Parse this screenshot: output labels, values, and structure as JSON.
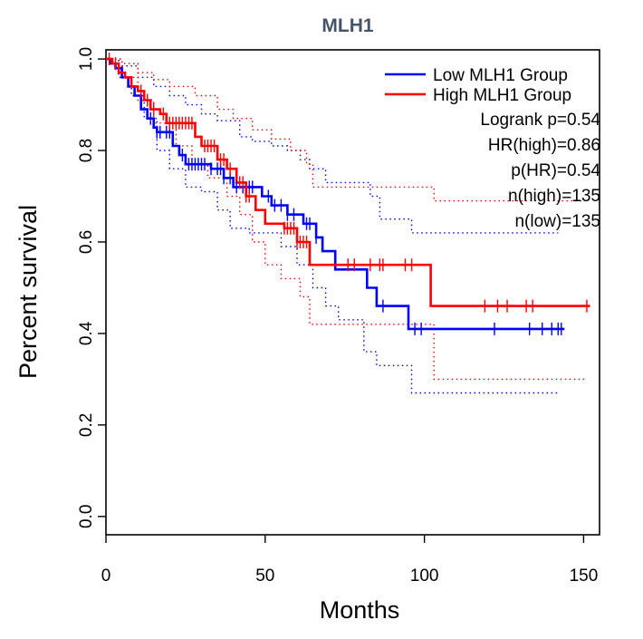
{
  "chart_data": {
    "type": "line",
    "title": "MLH1",
    "xlabel": "Months",
    "ylabel": "Percent survival",
    "xlim": [
      0,
      155
    ],
    "ylim": [
      -0.04,
      1.02
    ],
    "x_ticks": [
      0,
      50,
      100,
      150
    ],
    "x_tick_labels": [
      "0",
      "50",
      "100",
      "150"
    ],
    "y_ticks": [
      0.0,
      0.2,
      0.4,
      0.6,
      0.8,
      1.0
    ],
    "y_tick_labels": [
      "0.0",
      "0.2",
      "0.4",
      "0.6",
      "0.8",
      "1.0"
    ],
    "legend_position": "top-right",
    "annotations": [
      "Logrank p=0.54",
      "HR(high)=0.86",
      "p(HR)=0.54",
      "n(high)=135",
      "n(low)=135"
    ],
    "colors": {
      "low": "#0000FF",
      "high": "#FF0000",
      "title": "#44546A"
    },
    "series": [
      {
        "name": "Low MLH1 Group",
        "color": "#0000FF",
        "steps": [
          [
            0,
            1.0
          ],
          [
            1.5,
            0.99
          ],
          [
            3,
            0.98
          ],
          [
            5,
            0.96
          ],
          [
            7,
            0.94
          ],
          [
            9,
            0.92
          ],
          [
            11,
            0.89
          ],
          [
            13,
            0.87
          ],
          [
            15,
            0.85
          ],
          [
            16,
            0.84
          ],
          [
            21,
            0.81
          ],
          [
            23,
            0.79
          ],
          [
            25,
            0.77
          ],
          [
            33,
            0.76
          ],
          [
            37,
            0.74
          ],
          [
            40,
            0.72
          ],
          [
            49,
            0.7
          ],
          [
            52,
            0.68
          ],
          [
            57,
            0.66
          ],
          [
            62,
            0.64
          ],
          [
            66,
            0.61
          ],
          [
            68,
            0.58
          ],
          [
            72,
            0.54
          ],
          [
            82,
            0.5
          ],
          [
            85,
            0.46
          ],
          [
            95,
            0.41
          ],
          [
            144,
            0.41
          ]
        ],
        "censored": [
          14,
          16,
          17,
          19,
          20,
          24,
          26,
          27,
          28,
          29,
          30,
          31,
          33,
          35,
          36,
          37,
          39,
          41,
          43,
          45,
          46,
          51,
          53,
          55,
          57,
          59,
          63,
          64,
          66,
          87,
          97,
          99,
          122,
          133,
          137,
          140,
          142,
          143
        ],
        "ci_upper": [
          [
            0,
            1.0
          ],
          [
            4,
            0.985
          ],
          [
            10,
            0.96
          ],
          [
            15,
            0.94
          ],
          [
            20,
            0.92
          ],
          [
            25,
            0.9
          ],
          [
            30,
            0.88
          ],
          [
            35,
            0.865
          ],
          [
            42,
            0.83
          ],
          [
            46,
            0.82
          ],
          [
            52,
            0.81
          ],
          [
            57,
            0.8
          ],
          [
            61,
            0.78
          ],
          [
            64,
            0.76
          ],
          [
            69,
            0.73
          ],
          [
            74,
            0.73
          ],
          [
            83,
            0.7
          ],
          [
            86,
            0.65
          ],
          [
            96,
            0.62
          ],
          [
            142,
            0.62
          ]
        ],
        "ci_lower": [
          [
            0,
            1.0
          ],
          [
            4,
            0.96
          ],
          [
            8,
            0.92
          ],
          [
            12,
            0.87
          ],
          [
            16,
            0.8
          ],
          [
            20,
            0.76
          ],
          [
            25,
            0.72
          ],
          [
            30,
            0.71
          ],
          [
            35,
            0.67
          ],
          [
            39,
            0.63
          ],
          [
            45,
            0.62
          ],
          [
            55,
            0.59
          ],
          [
            60,
            0.55
          ],
          [
            65,
            0.5
          ],
          [
            69,
            0.46
          ],
          [
            73,
            0.43
          ],
          [
            81,
            0.36
          ],
          [
            85,
            0.33
          ],
          [
            96,
            0.27
          ],
          [
            142,
            0.27
          ]
        ]
      },
      {
        "name": "High MLH1 Group",
        "color": "#FF0000",
        "steps": [
          [
            0,
            1.0
          ],
          [
            2,
            0.99
          ],
          [
            4,
            0.97
          ],
          [
            6,
            0.96
          ],
          [
            8,
            0.94
          ],
          [
            10,
            0.93
          ],
          [
            12,
            0.91
          ],
          [
            14,
            0.89
          ],
          [
            17,
            0.88
          ],
          [
            19,
            0.86
          ],
          [
            28,
            0.83
          ],
          [
            30,
            0.81
          ],
          [
            35,
            0.78
          ],
          [
            38,
            0.76
          ],
          [
            41,
            0.73
          ],
          [
            44,
            0.7
          ],
          [
            47,
            0.67
          ],
          [
            50,
            0.64
          ],
          [
            56,
            0.63
          ],
          [
            60,
            0.6
          ],
          [
            64,
            0.55
          ],
          [
            102,
            0.46
          ],
          [
            152,
            0.46
          ]
        ],
        "censored": [
          1,
          3,
          11,
          13,
          15,
          18,
          20,
          21,
          22,
          23,
          24,
          25,
          26,
          27,
          31,
          32,
          33,
          34,
          36,
          37,
          39,
          42,
          43,
          44,
          45,
          56,
          57,
          58,
          59,
          60,
          61,
          62,
          63,
          76,
          78,
          83,
          86,
          87,
          94,
          96,
          119,
          123,
          126,
          132,
          134,
          151
        ],
        "ci_upper": [
          [
            0,
            1.0
          ],
          [
            5,
            0.99
          ],
          [
            10,
            0.97
          ],
          [
            15,
            0.955
          ],
          [
            20,
            0.94
          ],
          [
            28,
            0.92
          ],
          [
            35,
            0.89
          ],
          [
            40,
            0.87
          ],
          [
            46,
            0.845
          ],
          [
            52,
            0.825
          ],
          [
            58,
            0.8
          ],
          [
            63,
            0.77
          ],
          [
            65,
            0.72
          ],
          [
            101,
            0.72
          ],
          [
            103,
            0.69
          ],
          [
            151,
            0.69
          ]
        ],
        "ci_lower": [
          [
            0,
            1.0
          ],
          [
            5,
            0.96
          ],
          [
            10,
            0.91
          ],
          [
            15,
            0.86
          ],
          [
            22,
            0.81
          ],
          [
            27,
            0.77
          ],
          [
            32,
            0.74
          ],
          [
            38,
            0.7
          ],
          [
            42,
            0.66
          ],
          [
            46,
            0.6
          ],
          [
            50,
            0.55
          ],
          [
            55,
            0.52
          ],
          [
            61,
            0.48
          ],
          [
            64,
            0.42
          ],
          [
            101,
            0.42
          ],
          [
            103,
            0.3
          ],
          [
            151,
            0.3
          ]
        ]
      }
    ]
  }
}
